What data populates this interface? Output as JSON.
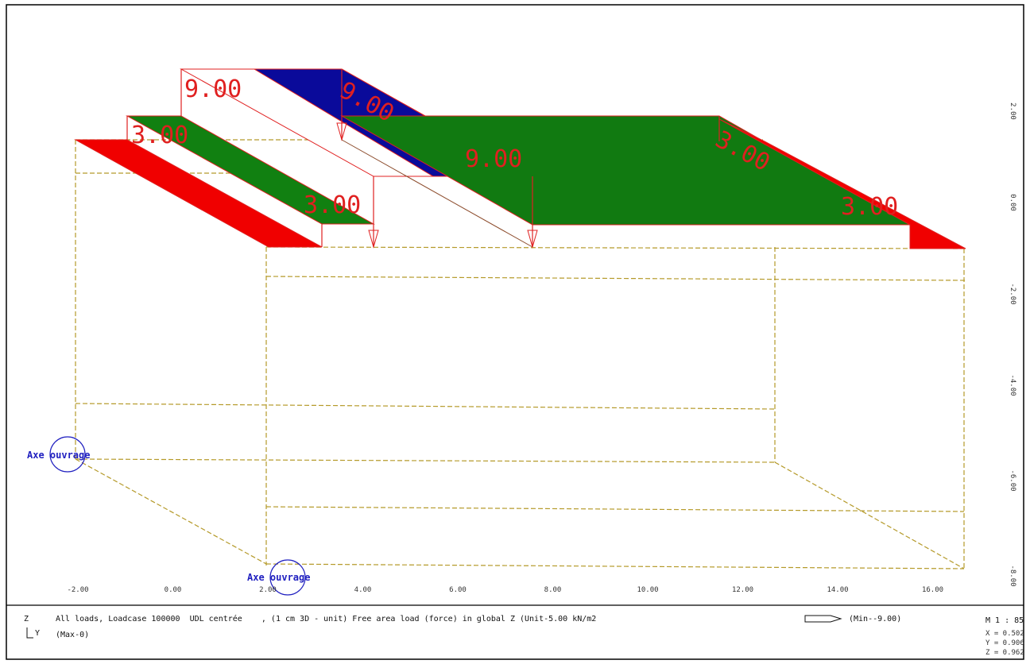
{
  "loads": [
    "9.00",
    "9.00",
    "9.00",
    "3.00",
    "3.00",
    "3.00",
    "3.00"
  ],
  "axis_labels": [
    "Axe ouvrage",
    "Axe ouvrage"
  ],
  "x_ticks": [
    "-2.00",
    "0.00",
    "2.00",
    "4.00",
    "6.00",
    "8.00",
    "10.00",
    "12.00",
    "14.00",
    "16.00"
  ],
  "y_ticks": [
    "2.00",
    "0.00",
    "-2.00",
    "-4.00",
    "-6.00",
    "-8.00"
  ],
  "status": {
    "axis_z": "Z",
    "axis_y": "Y",
    "description": "All loads, Loadcase 100000  UDL centrée    , (1 cm 3D - unit) Free area load (force) in global Z (Unit-5.00 kN/m2",
    "max": "(Max-0)",
    "min": "(Min--9.00)",
    "scale": "M 1 : 85",
    "x": "X = 0.502",
    "y": "Y = 0.906",
    "z": "Z = 0.962"
  }
}
